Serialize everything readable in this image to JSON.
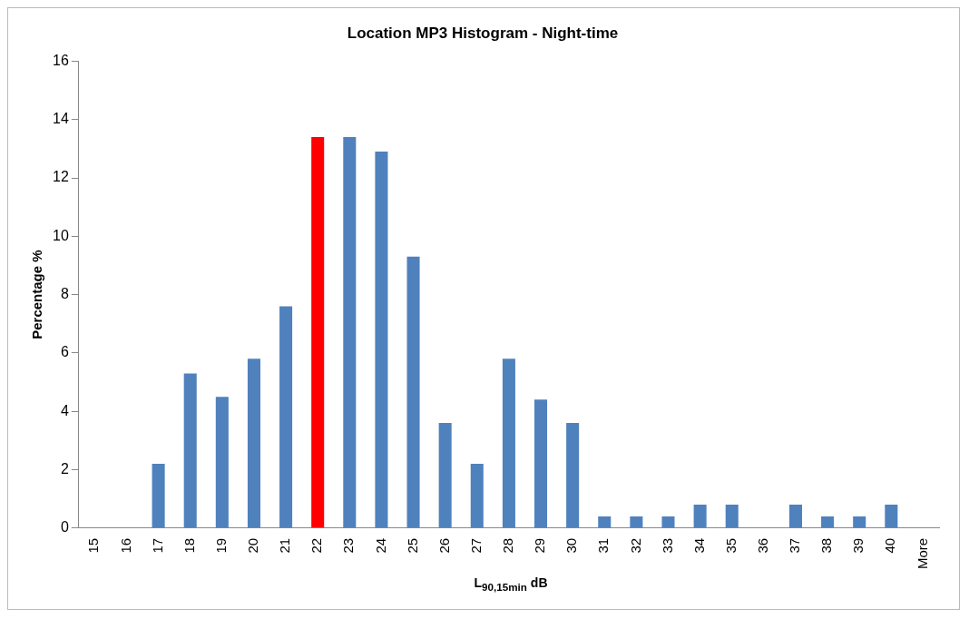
{
  "chart_data": {
    "type": "bar",
    "title": "Location MP3 Histogram - Night-time",
    "xlabel": "L$_{90,15min}$ dB",
    "ylabel": "Percentage %",
    "categories": [
      "15",
      "16",
      "17",
      "18",
      "19",
      "20",
      "21",
      "22",
      "23",
      "24",
      "25",
      "26",
      "27",
      "28",
      "29",
      "30",
      "31",
      "32",
      "33",
      "34",
      "35",
      "36",
      "37",
      "38",
      "39",
      "40",
      "More"
    ],
    "values": [
      0,
      0,
      2.2,
      5.3,
      4.5,
      5.8,
      7.6,
      13.4,
      13.4,
      12.9,
      9.3,
      3.6,
      2.2,
      5.8,
      4.4,
      3.6,
      0.4,
      0.4,
      0.4,
      0.8,
      0.8,
      0,
      0.8,
      0.4,
      0.4,
      0.8,
      0
    ],
    "colors": [
      "#4f81bd",
      "#4f81bd",
      "#4f81bd",
      "#4f81bd",
      "#4f81bd",
      "#4f81bd",
      "#4f81bd",
      "#ff0000",
      "#4f81bd",
      "#4f81bd",
      "#4f81bd",
      "#4f81bd",
      "#4f81bd",
      "#4f81bd",
      "#4f81bd",
      "#4f81bd",
      "#4f81bd",
      "#4f81bd",
      "#4f81bd",
      "#4f81bd",
      "#4f81bd",
      "#4f81bd",
      "#4f81bd",
      "#4f81bd",
      "#4f81bd",
      "#4f81bd",
      "#4f81bd"
    ],
    "ylim": [
      0,
      16
    ],
    "yticks": [
      0,
      2,
      4,
      6,
      8,
      10,
      12,
      14,
      16
    ],
    "grid": false,
    "legend": false
  }
}
